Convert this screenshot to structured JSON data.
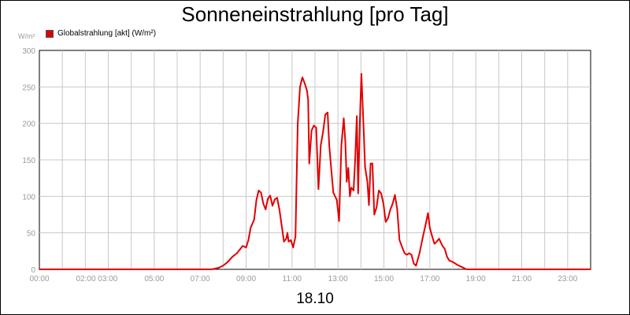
{
  "chart_data": {
    "type": "line",
    "title": "Sonneneinstrahlung [pro Tag]",
    "unit_label": "W/m²",
    "footer": "18.10",
    "legend_position": "top-left",
    "grid": true,
    "xlim": [
      0,
      24
    ],
    "ylim": [
      0,
      300
    ],
    "x_tick_labels": [
      {
        "x": 0,
        "label": "00:00"
      },
      {
        "x": 2.5,
        "label": "02:00 03:00"
      },
      {
        "x": 5,
        "label": "05:00"
      },
      {
        "x": 7,
        "label": "07:00"
      },
      {
        "x": 9,
        "label": "09:00"
      },
      {
        "x": 11,
        "label": "11:00"
      },
      {
        "x": 13,
        "label": "13:00"
      },
      {
        "x": 15,
        "label": "15:00"
      },
      {
        "x": 17,
        "label": "17:00"
      },
      {
        "x": 19,
        "label": "19:00"
      },
      {
        "x": 21,
        "label": "21:00"
      },
      {
        "x": 23,
        "label": "23:00"
      }
    ],
    "y_ticks": [
      0,
      50,
      100,
      150,
      200,
      250,
      300
    ],
    "colors": {
      "series": "#e10000",
      "grid": "#c8c8c8",
      "tick_text": "#9a9a9a"
    },
    "series": [
      {
        "name": "Globalstrahlung [akt] (W/m²)",
        "points": [
          [
            0,
            0
          ],
          [
            7.5,
            0
          ],
          [
            7.8,
            2
          ],
          [
            8.0,
            5
          ],
          [
            8.2,
            10
          ],
          [
            8.4,
            17
          ],
          [
            8.6,
            22
          ],
          [
            8.75,
            28
          ],
          [
            8.85,
            32
          ],
          [
            9.0,
            30
          ],
          [
            9.1,
            40
          ],
          [
            9.2,
            57
          ],
          [
            9.35,
            68
          ],
          [
            9.45,
            95
          ],
          [
            9.55,
            108
          ],
          [
            9.65,
            105
          ],
          [
            9.75,
            90
          ],
          [
            9.85,
            82
          ],
          [
            9.95,
            97
          ],
          [
            10.05,
            101
          ],
          [
            10.15,
            87
          ],
          [
            10.25,
            96
          ],
          [
            10.35,
            98
          ],
          [
            10.45,
            82
          ],
          [
            10.55,
            60
          ],
          [
            10.65,
            38
          ],
          [
            10.75,
            42
          ],
          [
            10.8,
            50
          ],
          [
            10.85,
            38
          ],
          [
            10.95,
            40
          ],
          [
            11.05,
            30
          ],
          [
            11.15,
            45
          ],
          [
            11.25,
            200
          ],
          [
            11.35,
            250
          ],
          [
            11.45,
            263
          ],
          [
            11.55,
            255
          ],
          [
            11.65,
            245
          ],
          [
            11.7,
            232
          ],
          [
            11.75,
            145
          ],
          [
            11.85,
            190
          ],
          [
            11.95,
            197
          ],
          [
            12.05,
            194
          ],
          [
            12.15,
            110
          ],
          [
            12.25,
            170
          ],
          [
            12.35,
            188
          ],
          [
            12.45,
            212
          ],
          [
            12.55,
            215
          ],
          [
            12.62,
            170
          ],
          [
            12.7,
            140
          ],
          [
            12.8,
            105
          ],
          [
            12.95,
            95
          ],
          [
            13.05,
            66
          ],
          [
            13.15,
            170
          ],
          [
            13.25,
            207
          ],
          [
            13.32,
            175
          ],
          [
            13.38,
            120
          ],
          [
            13.45,
            139
          ],
          [
            13.52,
            100
          ],
          [
            13.58,
            112
          ],
          [
            13.68,
            108
          ],
          [
            13.75,
            150
          ],
          [
            13.82,
            210
          ],
          [
            13.88,
            104
          ],
          [
            13.95,
            200
          ],
          [
            14.02,
            268
          ],
          [
            14.1,
            205
          ],
          [
            14.18,
            140
          ],
          [
            14.28,
            120
          ],
          [
            14.35,
            88
          ],
          [
            14.42,
            145
          ],
          [
            14.5,
            145
          ],
          [
            14.58,
            75
          ],
          [
            14.68,
            85
          ],
          [
            14.78,
            108
          ],
          [
            14.88,
            104
          ],
          [
            14.98,
            90
          ],
          [
            15.08,
            65
          ],
          [
            15.18,
            70
          ],
          [
            15.28,
            82
          ],
          [
            15.38,
            90
          ],
          [
            15.48,
            102
          ],
          [
            15.58,
            82
          ],
          [
            15.68,
            40
          ],
          [
            15.8,
            30
          ],
          [
            15.9,
            22
          ],
          [
            16.0,
            20
          ],
          [
            16.1,
            22
          ],
          [
            16.2,
            20
          ],
          [
            16.3,
            8
          ],
          [
            16.4,
            5
          ],
          [
            16.55,
            22
          ],
          [
            16.7,
            45
          ],
          [
            16.82,
            62
          ],
          [
            16.92,
            77
          ],
          [
            17.0,
            57
          ],
          [
            17.1,
            45
          ],
          [
            17.2,
            35
          ],
          [
            17.3,
            38
          ],
          [
            17.4,
            42
          ],
          [
            17.55,
            32
          ],
          [
            17.65,
            28
          ],
          [
            17.75,
            17
          ],
          [
            17.85,
            12
          ],
          [
            18.0,
            10
          ],
          [
            18.2,
            6
          ],
          [
            18.4,
            3
          ],
          [
            18.6,
            0
          ],
          [
            24,
            0
          ]
        ]
      }
    ]
  }
}
